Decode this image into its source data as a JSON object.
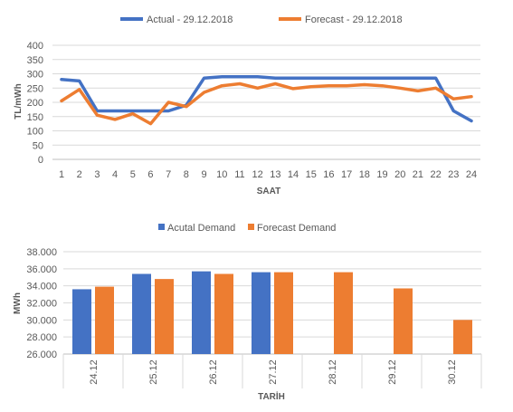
{
  "chart_data": [
    {
      "type": "line",
      "legend_position": "top",
      "xlabel": "SAAT",
      "ylabel": "TL/mWh",
      "ylim": [
        0,
        400
      ],
      "yticks": [
        "0",
        "50",
        "100",
        "150",
        "200",
        "250",
        "300",
        "350",
        "400"
      ],
      "grid": true,
      "categories": [
        "1",
        "2",
        "3",
        "4",
        "5",
        "6",
        "7",
        "8",
        "9",
        "10",
        "11",
        "12",
        "13",
        "14",
        "15",
        "16",
        "17",
        "18",
        "19",
        "20",
        "21",
        "22",
        "23",
        "24"
      ],
      "series": [
        {
          "name": "Actual - 29.12.2018",
          "color": "#4472c4",
          "values": [
            280,
            275,
            170,
            170,
            170,
            170,
            170,
            190,
            285,
            290,
            290,
            290,
            285,
            285,
            285,
            285,
            285,
            285,
            285,
            285,
            285,
            285,
            170,
            135
          ]
        },
        {
          "name": "Forecast - 29.12.2018",
          "color": "#ed7d31",
          "values": [
            205,
            245,
            155,
            140,
            160,
            125,
            200,
            185,
            235,
            258,
            265,
            250,
            265,
            248,
            255,
            258,
            258,
            262,
            258,
            250,
            240,
            250,
            212,
            220
          ]
        }
      ]
    },
    {
      "type": "bar",
      "legend_position": "top",
      "xlabel": "TARİH",
      "ylabel": "MWh",
      "ylim": [
        26000,
        38000
      ],
      "yticks": [
        "26.000",
        "28.000",
        "30.000",
        "32.000",
        "34.000",
        "36.000",
        "38.000"
      ],
      "grid": true,
      "categories": [
        "24.12",
        "25.12",
        "26.12",
        "27.12",
        "28.12",
        "29.12",
        "30.12"
      ],
      "series": [
        {
          "name": "Acutal Demand",
          "color": "#4472c4",
          "values": [
            33600,
            35400,
            35700,
            35600,
            null,
            null,
            null
          ]
        },
        {
          "name": "Forecast Demand",
          "color": "#ed7d31",
          "values": [
            33900,
            34800,
            35400,
            35600,
            35600,
            33700,
            30000
          ]
        }
      ]
    }
  ]
}
